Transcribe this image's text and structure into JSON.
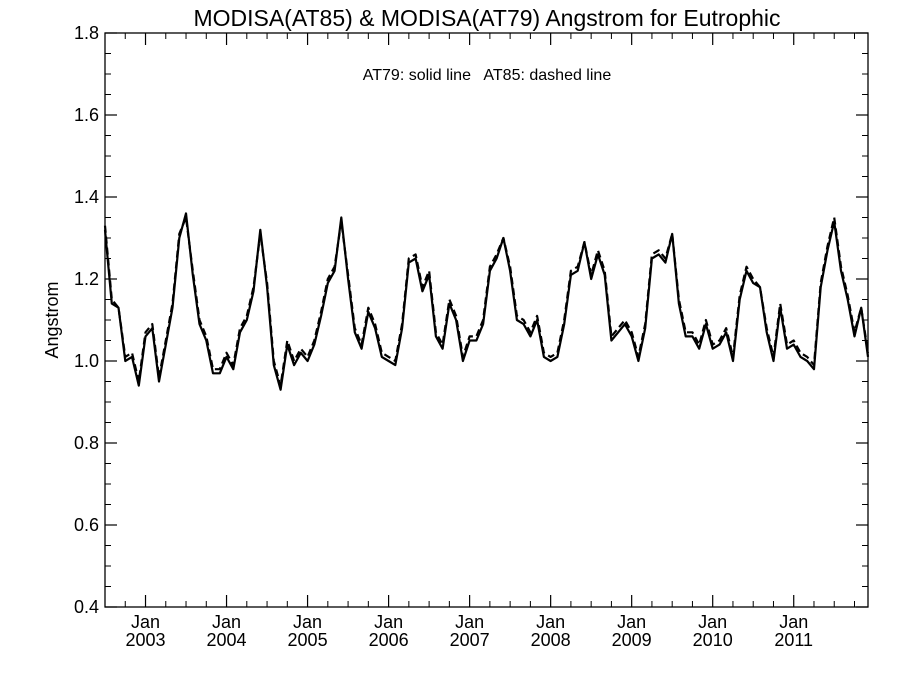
{
  "chart_data": {
    "type": "line",
    "title": "MODISA(AT85) & MODISA(AT79)  Angstrom for Eutrophic",
    "annotation": "AT79: solid line   AT85: dashed line",
    "xlabel": "",
    "ylabel": "Angstrom",
    "ylim": [
      0.4,
      1.8
    ],
    "xlim": [
      "2002-07",
      "2011-12"
    ],
    "y_ticks": [
      "0.4",
      "0.6",
      "0.8",
      "1.0",
      "1.2",
      "1.4",
      "1.6",
      "1.8"
    ],
    "x_ticks": [
      {
        "month": "Jan",
        "year": "2003",
        "date": "2003-01"
      },
      {
        "month": "Jan",
        "year": "2004",
        "date": "2004-01"
      },
      {
        "month": "Jan",
        "year": "2005",
        "date": "2005-01"
      },
      {
        "month": "Jan",
        "year": "2006",
        "date": "2006-01"
      },
      {
        "month": "Jan",
        "year": "2007",
        "date": "2007-01"
      },
      {
        "month": "Jan",
        "year": "2008",
        "date": "2008-01"
      },
      {
        "month": "Jan",
        "year": "2009",
        "date": "2009-01"
      },
      {
        "month": "Jan",
        "year": "2010",
        "date": "2010-01"
      },
      {
        "month": "Jan",
        "year": "2011",
        "date": "2011-01"
      }
    ],
    "x": [
      "2002-07",
      "2002-08",
      "2002-09",
      "2002-10",
      "2002-11",
      "2002-12",
      "2003-01",
      "2003-02",
      "2003-03",
      "2003-04",
      "2003-05",
      "2003-06",
      "2003-07",
      "2003-08",
      "2003-09",
      "2003-10",
      "2003-11",
      "2003-12",
      "2004-01",
      "2004-02",
      "2004-03",
      "2004-04",
      "2004-05",
      "2004-06",
      "2004-07",
      "2004-08",
      "2004-09",
      "2004-10",
      "2004-11",
      "2004-12",
      "2005-01",
      "2005-02",
      "2005-03",
      "2005-04",
      "2005-05",
      "2005-06",
      "2005-07",
      "2005-08",
      "2005-09",
      "2005-10",
      "2005-11",
      "2005-12",
      "2006-01",
      "2006-02",
      "2006-03",
      "2006-04",
      "2006-05",
      "2006-06",
      "2006-07",
      "2006-08",
      "2006-09",
      "2006-10",
      "2006-11",
      "2006-12",
      "2007-01",
      "2007-02",
      "2007-03",
      "2007-04",
      "2007-05",
      "2007-06",
      "2007-07",
      "2007-08",
      "2007-09",
      "2007-10",
      "2007-11",
      "2007-12",
      "2008-01",
      "2008-02",
      "2008-03",
      "2008-04",
      "2008-05",
      "2008-06",
      "2008-07",
      "2008-08",
      "2008-09",
      "2008-10",
      "2008-11",
      "2008-12",
      "2009-01",
      "2009-02",
      "2009-03",
      "2009-04",
      "2009-05",
      "2009-06",
      "2009-07",
      "2009-08",
      "2009-09",
      "2009-10",
      "2009-11",
      "2009-12",
      "2010-01",
      "2010-02",
      "2010-03",
      "2010-04",
      "2010-05",
      "2010-06",
      "2010-07",
      "2010-08",
      "2010-09",
      "2010-10",
      "2010-11",
      "2010-12",
      "2011-01",
      "2011-02",
      "2011-03",
      "2011-04",
      "2011-05",
      "2011-06",
      "2011-07",
      "2011-08",
      "2011-09",
      "2011-10",
      "2011-11",
      "2011-12"
    ],
    "series": [
      {
        "name": "AT79",
        "style": "solid",
        "color": "#000000",
        "values": [
          1.32,
          1.14,
          1.13,
          1.0,
          1.01,
          0.94,
          1.06,
          1.08,
          0.95,
          1.04,
          1.13,
          1.3,
          1.36,
          1.21,
          1.09,
          1.05,
          0.97,
          0.97,
          1.01,
          0.98,
          1.07,
          1.1,
          1.17,
          1.32,
          1.18,
          0.99,
          0.93,
          1.04,
          0.99,
          1.02,
          1.0,
          1.04,
          1.11,
          1.19,
          1.22,
          1.35,
          1.2,
          1.07,
          1.03,
          1.12,
          1.08,
          1.01,
          1.0,
          0.99,
          1.08,
          1.24,
          1.25,
          1.17,
          1.21,
          1.06,
          1.03,
          1.14,
          1.1,
          1.0,
          1.05,
          1.05,
          1.09,
          1.22,
          1.25,
          1.3,
          1.22,
          1.1,
          1.09,
          1.06,
          1.1,
          1.01,
          1.0,
          1.01,
          1.09,
          1.21,
          1.22,
          1.29,
          1.2,
          1.26,
          1.21,
          1.05,
          1.07,
          1.09,
          1.06,
          1.0,
          1.08,
          1.25,
          1.26,
          1.24,
          1.31,
          1.14,
          1.06,
          1.06,
          1.03,
          1.09,
          1.03,
          1.04,
          1.07,
          1.0,
          1.15,
          1.22,
          1.19,
          1.18,
          1.07,
          1.0,
          1.13,
          1.03,
          1.04,
          1.01,
          1.0,
          0.98,
          1.18,
          1.27,
          1.34,
          1.22,
          1.15,
          1.06,
          1.13,
          1.01
        ]
      },
      {
        "name": "AT85",
        "style": "dashed",
        "color": "#000000",
        "values": [
          1.33,
          1.15,
          1.13,
          1.01,
          1.02,
          0.95,
          1.07,
          1.09,
          0.96,
          1.05,
          1.14,
          1.31,
          1.35,
          1.22,
          1.1,
          1.06,
          0.98,
          0.98,
          1.02,
          0.99,
          1.08,
          1.11,
          1.18,
          1.31,
          1.19,
          1.0,
          0.94,
          1.05,
          1.0,
          1.03,
          1.01,
          1.05,
          1.12,
          1.2,
          1.23,
          1.34,
          1.21,
          1.08,
          1.04,
          1.13,
          1.09,
          1.02,
          1.01,
          1.0,
          1.09,
          1.25,
          1.26,
          1.18,
          1.22,
          1.07,
          1.04,
          1.15,
          1.11,
          1.01,
          1.06,
          1.06,
          1.1,
          1.23,
          1.26,
          1.3,
          1.23,
          1.11,
          1.1,
          1.07,
          1.11,
          1.02,
          1.01,
          1.02,
          1.1,
          1.22,
          1.23,
          1.29,
          1.21,
          1.27,
          1.22,
          1.06,
          1.08,
          1.1,
          1.07,
          1.01,
          1.09,
          1.26,
          1.27,
          1.25,
          1.31,
          1.15,
          1.07,
          1.07,
          1.04,
          1.1,
          1.04,
          1.05,
          1.08,
          1.01,
          1.16,
          1.23,
          1.2,
          1.18,
          1.08,
          1.01,
          1.14,
          1.04,
          1.05,
          1.02,
          1.01,
          0.99,
          1.19,
          1.28,
          1.35,
          1.23,
          1.16,
          1.07,
          1.13,
          1.02
        ]
      }
    ],
    "grid": false
  }
}
